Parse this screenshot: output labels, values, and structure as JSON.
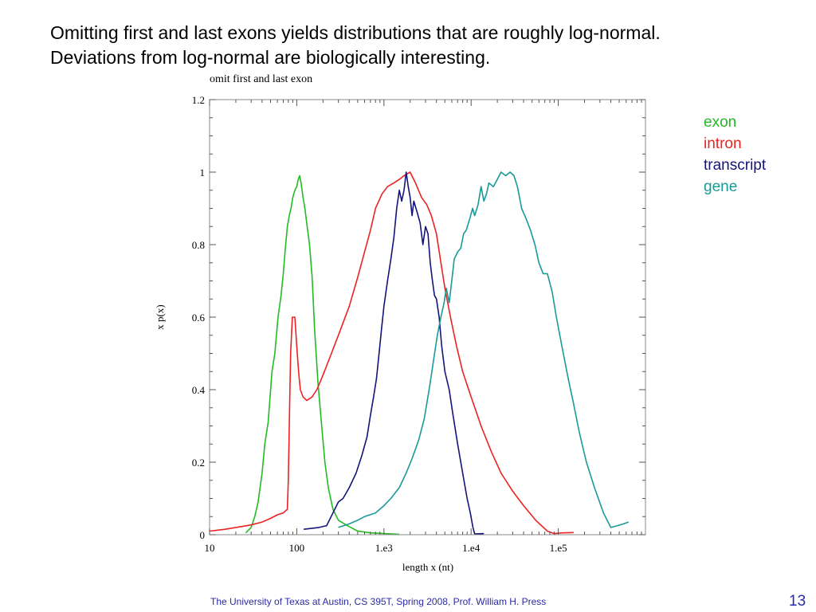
{
  "slide": {
    "headline_line1": "Omitting first and last exons yields distributions that are roughly log-normal.",
    "headline_line2": "Deviations from log-normal are biologically interesting.",
    "footer": "The University of Texas at Austin, CS 395T, Spring 2008, Prof. William H. Press",
    "page_number": "13"
  },
  "chart_data": {
    "type": "line",
    "title": "omit first and last exon",
    "xlabel": "length x (nt)",
    "ylabel": "x p(x)",
    "xscale": "log",
    "xlim": [
      10,
      1000000
    ],
    "ylim": [
      0,
      1.2
    ],
    "x_ticks": [
      10,
      100,
      1000,
      10000,
      100000
    ],
    "x_tick_labels": [
      "10",
      "100",
      "1.e3",
      "1.e4",
      "1.e5"
    ],
    "y_ticks": [
      0,
      0.2,
      0.4,
      0.6,
      0.8,
      1.0,
      1.2
    ],
    "y_tick_labels": [
      "0",
      "0.2",
      "0.4",
      "0.6",
      "0.8",
      "1",
      "1.2"
    ],
    "grid": false,
    "legend_position": "right, outside plot",
    "series": [
      {
        "name": "exon",
        "color": "#22bb22",
        "points": [
          [
            26,
            0.005
          ],
          [
            30,
            0.02
          ],
          [
            33,
            0.05
          ],
          [
            36,
            0.09
          ],
          [
            40,
            0.17
          ],
          [
            43,
            0.25
          ],
          [
            47,
            0.31
          ],
          [
            52,
            0.45
          ],
          [
            56,
            0.5
          ],
          [
            61,
            0.6
          ],
          [
            66,
            0.66
          ],
          [
            70,
            0.72
          ],
          [
            74,
            0.79
          ],
          [
            78,
            0.85
          ],
          [
            82,
            0.88
          ],
          [
            86,
            0.9
          ],
          [
            90,
            0.93
          ],
          [
            95,
            0.95
          ],
          [
            100,
            0.96
          ],
          [
            104,
            0.98
          ],
          [
            108,
            0.99
          ],
          [
            112,
            0.97
          ],
          [
            118,
            0.93
          ],
          [
            124,
            0.9
          ],
          [
            130,
            0.86
          ],
          [
            140,
            0.8
          ],
          [
            150,
            0.71
          ],
          [
            160,
            0.57
          ],
          [
            175,
            0.42
          ],
          [
            190,
            0.32
          ],
          [
            210,
            0.2
          ],
          [
            230,
            0.13
          ],
          [
            260,
            0.07
          ],
          [
            300,
            0.04
          ],
          [
            380,
            0.025
          ],
          [
            500,
            0.01
          ],
          [
            700,
            0.005
          ],
          [
            1500,
            0.001
          ]
        ]
      },
      {
        "name": "intron",
        "color": "#ee2222",
        "points": [
          [
            10,
            0.01
          ],
          [
            15,
            0.015
          ],
          [
            20,
            0.02
          ],
          [
            30,
            0.027
          ],
          [
            40,
            0.035
          ],
          [
            50,
            0.045
          ],
          [
            60,
            0.055
          ],
          [
            70,
            0.06
          ],
          [
            78,
            0.07
          ],
          [
            80,
            0.15
          ],
          [
            82,
            0.3
          ],
          [
            85,
            0.5
          ],
          [
            89,
            0.6
          ],
          [
            95,
            0.6
          ],
          [
            100,
            0.52
          ],
          [
            105,
            0.45
          ],
          [
            110,
            0.4
          ],
          [
            118,
            0.38
          ],
          [
            130,
            0.37
          ],
          [
            150,
            0.38
          ],
          [
            170,
            0.4
          ],
          [
            200,
            0.44
          ],
          [
            250,
            0.5
          ],
          [
            300,
            0.55
          ],
          [
            400,
            0.63
          ],
          [
            500,
            0.71
          ],
          [
            600,
            0.78
          ],
          [
            700,
            0.84
          ],
          [
            800,
            0.9
          ],
          [
            950,
            0.94
          ],
          [
            1100,
            0.96
          ],
          [
            1300,
            0.97
          ],
          [
            1500,
            0.98
          ],
          [
            1700,
            0.99
          ],
          [
            2000,
            1.0
          ],
          [
            2300,
            0.97
          ],
          [
            2700,
            0.93
          ],
          [
            3100,
            0.91
          ],
          [
            3500,
            0.88
          ],
          [
            4000,
            0.83
          ],
          [
            4500,
            0.75
          ],
          [
            5000,
            0.68
          ],
          [
            5800,
            0.6
          ],
          [
            6800,
            0.52
          ],
          [
            8000,
            0.45
          ],
          [
            10000,
            0.38
          ],
          [
            13000,
            0.3
          ],
          [
            17000,
            0.23
          ],
          [
            22000,
            0.17
          ],
          [
            30000,
            0.12
          ],
          [
            40000,
            0.08
          ],
          [
            55000,
            0.04
          ],
          [
            75000,
            0.01
          ],
          [
            90000,
            0.003
          ],
          [
            110000,
            0.005
          ],
          [
            150000,
            0.006
          ]
        ]
      },
      {
        "name": "transcript",
        "color": "#14147a",
        "points": [
          [
            120,
            0.015
          ],
          [
            180,
            0.02
          ],
          [
            220,
            0.025
          ],
          [
            260,
            0.06
          ],
          [
            300,
            0.09
          ],
          [
            340,
            0.1
          ],
          [
            400,
            0.13
          ],
          [
            480,
            0.17
          ],
          [
            560,
            0.22
          ],
          [
            640,
            0.27
          ],
          [
            700,
            0.33
          ],
          [
            760,
            0.38
          ],
          [
            820,
            0.43
          ],
          [
            880,
            0.5
          ],
          [
            940,
            0.57
          ],
          [
            1000,
            0.63
          ],
          [
            1100,
            0.7
          ],
          [
            1200,
            0.76
          ],
          [
            1300,
            0.82
          ],
          [
            1400,
            0.9
          ],
          [
            1500,
            0.95
          ],
          [
            1600,
            0.92
          ],
          [
            1700,
            0.95
          ],
          [
            1800,
            1.0
          ],
          [
            1900,
            0.96
          ],
          [
            2000,
            0.93
          ],
          [
            2100,
            0.88
          ],
          [
            2200,
            0.92
          ],
          [
            2400,
            0.89
          ],
          [
            2600,
            0.86
          ],
          [
            2800,
            0.8
          ],
          [
            3000,
            0.85
          ],
          [
            3200,
            0.83
          ],
          [
            3400,
            0.75
          ],
          [
            3600,
            0.7
          ],
          [
            3800,
            0.66
          ],
          [
            4000,
            0.65
          ],
          [
            4300,
            0.6
          ],
          [
            4600,
            0.52
          ],
          [
            5000,
            0.45
          ],
          [
            5600,
            0.4
          ],
          [
            6200,
            0.33
          ],
          [
            7000,
            0.25
          ],
          [
            8000,
            0.17
          ],
          [
            9000,
            0.1
          ],
          [
            9800,
            0.06
          ],
          [
            10500,
            0.02
          ],
          [
            11000,
            0.002
          ],
          [
            14000,
            0.003
          ]
        ]
      },
      {
        "name": "gene",
        "color": "#1a9999",
        "points": [
          [
            300,
            0.02
          ],
          [
            400,
            0.03
          ],
          [
            500,
            0.04
          ],
          [
            600,
            0.05
          ],
          [
            800,
            0.06
          ],
          [
            1000,
            0.08
          ],
          [
            1200,
            0.1
          ],
          [
            1500,
            0.13
          ],
          [
            1800,
            0.17
          ],
          [
            2100,
            0.21
          ],
          [
            2500,
            0.26
          ],
          [
            2900,
            0.32
          ],
          [
            3300,
            0.4
          ],
          [
            3700,
            0.48
          ],
          [
            4100,
            0.55
          ],
          [
            4500,
            0.6
          ],
          [
            4900,
            0.64
          ],
          [
            5200,
            0.68
          ],
          [
            5600,
            0.64
          ],
          [
            6000,
            0.7
          ],
          [
            6400,
            0.76
          ],
          [
            7000,
            0.78
          ],
          [
            7600,
            0.79
          ],
          [
            8200,
            0.83
          ],
          [
            8800,
            0.84
          ],
          [
            9600,
            0.87
          ],
          [
            10400,
            0.9
          ],
          [
            11000,
            0.88
          ],
          [
            12000,
            0.91
          ],
          [
            13000,
            0.96
          ],
          [
            14000,
            0.92
          ],
          [
            15000,
            0.94
          ],
          [
            16000,
            0.97
          ],
          [
            18000,
            0.96
          ],
          [
            20000,
            0.98
          ],
          [
            22000,
            1.0
          ],
          [
            25000,
            0.99
          ],
          [
            28000,
            1.0
          ],
          [
            31000,
            0.99
          ],
          [
            34000,
            0.96
          ],
          [
            38000,
            0.9
          ],
          [
            43000,
            0.87
          ],
          [
            48000,
            0.84
          ],
          [
            54000,
            0.8
          ],
          [
            60000,
            0.75
          ],
          [
            67000,
            0.72
          ],
          [
            75000,
            0.72
          ],
          [
            85000,
            0.67
          ],
          [
            95000,
            0.6
          ],
          [
            110000,
            0.52
          ],
          [
            130000,
            0.43
          ],
          [
            150000,
            0.36
          ],
          [
            175000,
            0.28
          ],
          [
            210000,
            0.2
          ],
          [
            260000,
            0.13
          ],
          [
            330000,
            0.06
          ],
          [
            400000,
            0.02
          ],
          [
            480000,
            0.025
          ],
          [
            560000,
            0.03
          ],
          [
            640000,
            0.035
          ]
        ]
      }
    ]
  }
}
